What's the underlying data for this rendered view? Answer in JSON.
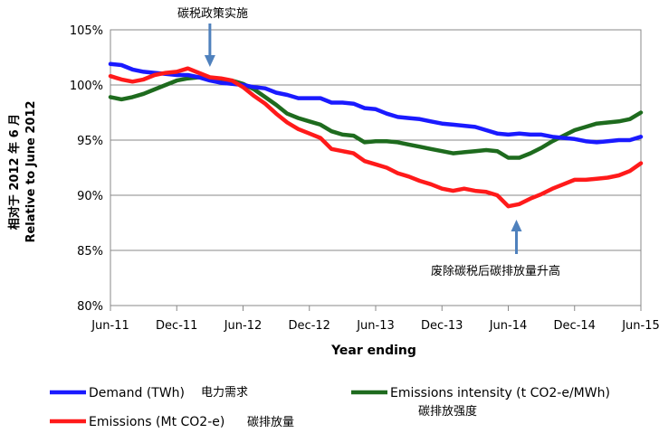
{
  "chart_data": {
    "type": "line",
    "xlabel": "Year ending",
    "ylabel_cn": "相对于 2012 年 6 月",
    "ylabel": "Relative to June 2012",
    "ylim": [
      80,
      105
    ],
    "yticks": [
      "80%",
      "85%",
      "90%",
      "95%",
      "100%",
      "105%"
    ],
    "ytick_values": [
      80,
      85,
      90,
      95,
      100,
      105
    ],
    "categories": [
      "Jun-11",
      "Jul-11",
      "Aug-11",
      "Sep-11",
      "Oct-11",
      "Nov-11",
      "Dec-11",
      "Jan-12",
      "Feb-12",
      "Mar-12",
      "Apr-12",
      "May-12",
      "Jun-12",
      "Jul-12",
      "Aug-12",
      "Sep-12",
      "Oct-12",
      "Nov-12",
      "Dec-12",
      "Jan-13",
      "Feb-13",
      "Mar-13",
      "Apr-13",
      "May-13",
      "Jun-13",
      "Jul-13",
      "Aug-13",
      "Sep-13",
      "Oct-13",
      "Nov-13",
      "Dec-13",
      "Jan-14",
      "Feb-14",
      "Mar-14",
      "Apr-14",
      "May-14",
      "Jun-14",
      "Jul-14",
      "Aug-14",
      "Sep-14",
      "Oct-14",
      "Nov-14",
      "Dec-14",
      "Jan-15",
      "Feb-15",
      "Mar-15",
      "Apr-15",
      "May-15",
      "Jun-15"
    ],
    "xtick_labels": [
      "Jun-11",
      "Dec-11",
      "Jun-12",
      "Dec-12",
      "Jun-13",
      "Dec-13",
      "Jun-14",
      "Dec-14",
      "Jun-15"
    ],
    "xtick_indices": [
      0,
      6,
      12,
      18,
      24,
      30,
      36,
      42,
      48
    ],
    "grid": true,
    "legend_position": "bottom",
    "series": [
      {
        "name": "Demand (TWh)",
        "name_cn": "电力需求",
        "color": "#1a1aff",
        "values": [
          101.9,
          101.8,
          101.4,
          101.2,
          101.1,
          101.0,
          100.9,
          100.9,
          100.7,
          100.4,
          100.2,
          100.1,
          100.0,
          99.8,
          99.7,
          99.3,
          99.1,
          98.8,
          98.8,
          98.8,
          98.4,
          98.4,
          98.3,
          97.9,
          97.8,
          97.4,
          97.1,
          97.0,
          96.9,
          96.7,
          96.5,
          96.4,
          96.3,
          96.2,
          95.9,
          95.6,
          95.5,
          95.6,
          95.5,
          95.5,
          95.3,
          95.2,
          95.1,
          94.9,
          94.8,
          94.9,
          95.0,
          95.0,
          95.3
        ]
      },
      {
        "name": "Emissions intensity (t CO2-e/MWh)",
        "name_cn": "碳排放强度",
        "color": "#1e6b1e",
        "values": [
          98.9,
          98.7,
          98.9,
          99.2,
          99.6,
          100.0,
          100.4,
          100.6,
          100.7,
          100.6,
          100.3,
          100.4,
          100.1,
          99.6,
          98.9,
          98.2,
          97.4,
          97.0,
          96.7,
          96.4,
          95.8,
          95.5,
          95.4,
          94.8,
          94.9,
          94.9,
          94.8,
          94.6,
          94.4,
          94.2,
          94.0,
          93.8,
          93.9,
          94.0,
          94.1,
          94.0,
          93.4,
          93.4,
          93.8,
          94.3,
          94.9,
          95.4,
          95.9,
          96.2,
          96.5,
          96.6,
          96.7,
          96.9,
          97.5
        ]
      },
      {
        "name": "Emissions (Mt CO2-e)",
        "name_cn": "碳排放量",
        "color": "#ff1a1a",
        "values": [
          100.8,
          100.5,
          100.3,
          100.5,
          100.9,
          101.1,
          101.2,
          101.5,
          101.1,
          100.7,
          100.6,
          100.4,
          99.8,
          99.0,
          98.3,
          97.4,
          96.6,
          96.0,
          95.6,
          95.2,
          94.2,
          94.0,
          93.8,
          93.1,
          92.8,
          92.5,
          92.0,
          91.7,
          91.3,
          91.0,
          90.6,
          90.4,
          90.6,
          90.4,
          90.3,
          90.0,
          89.0,
          89.2,
          89.7,
          90.1,
          90.6,
          91.0,
          91.4,
          91.4,
          91.5,
          91.6,
          91.8,
          92.2,
          92.9
        ]
      }
    ],
    "annotations": [
      {
        "text": "碳税政策实施",
        "x": "Mar-12",
        "arrow": "down"
      },
      {
        "text": "废除碳税后碳排放量升高",
        "x": "Jun-14",
        "arrow": "up"
      }
    ]
  }
}
